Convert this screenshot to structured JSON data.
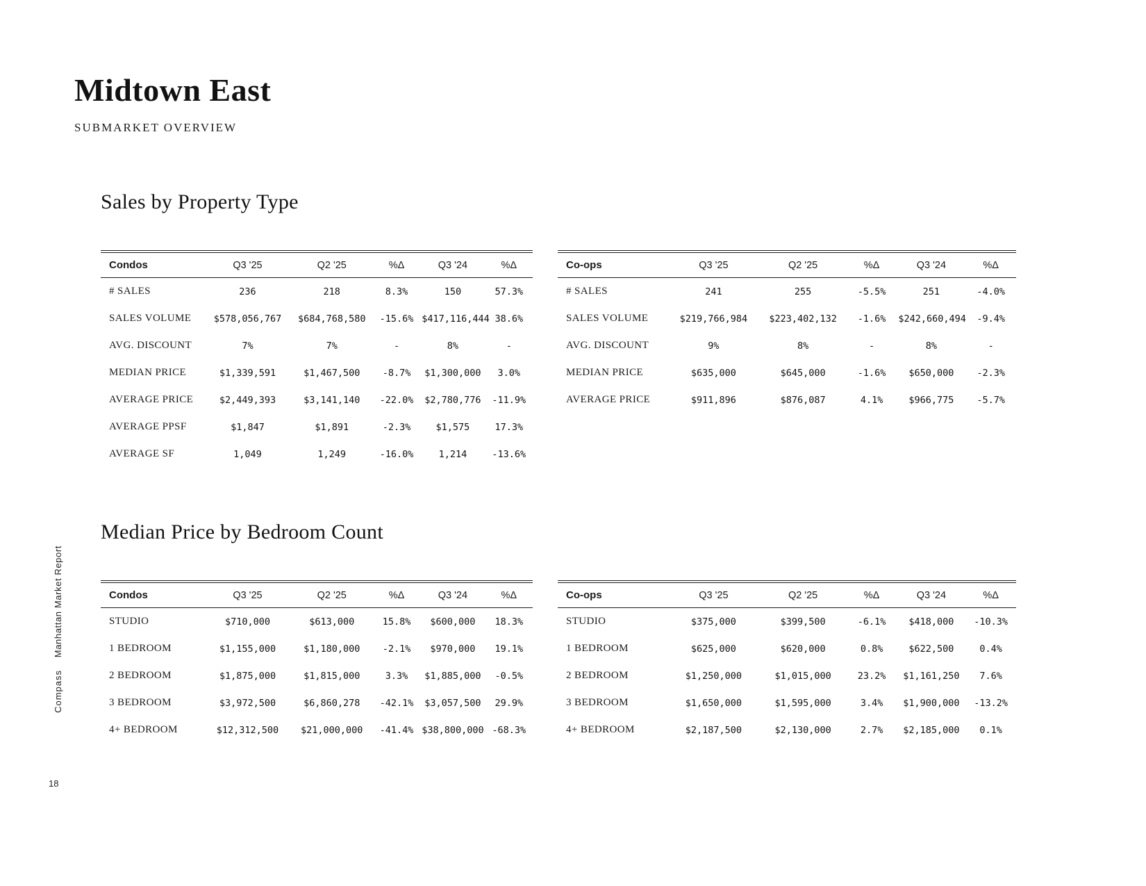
{
  "page": {
    "title": "Midtown East",
    "subtitle": "SUBMARKET OVERVIEW",
    "page_number": "18",
    "sidebar": {
      "report_name": "Manhattan Market Report",
      "brand": "Compass"
    }
  },
  "sections": [
    {
      "title": "Sales by Property Type",
      "tables": [
        {
          "name": "Condos",
          "columns": [
            "Q3 '25",
            "Q2 '25",
            "%Δ",
            "Q3 '24",
            "%Δ"
          ],
          "rows": [
            {
              "label": "# SALES",
              "values": [
                "236",
                "218",
                "8.3%",
                "150",
                "57.3%"
              ]
            },
            {
              "label": "SALES VOLUME",
              "values": [
                "$578,056,767",
                "$684,768,580",
                "-15.6%",
                "$417,116,444",
                "38.6%"
              ]
            },
            {
              "label": "AVG. DISCOUNT",
              "values": [
                "7%",
                "7%",
                "-",
                "8%",
                "-"
              ]
            },
            {
              "label": "MEDIAN PRICE",
              "values": [
                "$1,339,591",
                "$1,467,500",
                "-8.7%",
                "$1,300,000",
                "3.0%"
              ]
            },
            {
              "label": "AVERAGE PRICE",
              "values": [
                "$2,449,393",
                "$3,141,140",
                "-22.0%",
                "$2,780,776",
                "-11.9%"
              ]
            },
            {
              "label": "AVERAGE PPSF",
              "values": [
                "$1,847",
                "$1,891",
                "-2.3%",
                "$1,575",
                "17.3%"
              ]
            },
            {
              "label": "AVERAGE SF",
              "values": [
                "1,049",
                "1,249",
                "-16.0%",
                "1,214",
                "-13.6%"
              ]
            }
          ]
        },
        {
          "name": "Co-ops",
          "columns": [
            "Q3 '25",
            "Q2 '25",
            "%Δ",
            "Q3 '24",
            "%Δ"
          ],
          "rows": [
            {
              "label": "# SALES",
              "values": [
                "241",
                "255",
                "-5.5%",
                "251",
                "-4.0%"
              ]
            },
            {
              "label": "SALES VOLUME",
              "values": [
                "$219,766,984",
                "$223,402,132",
                "-1.6%",
                "$242,660,494",
                "-9.4%"
              ]
            },
            {
              "label": "AVG. DISCOUNT",
              "values": [
                "9%",
                "8%",
                "-",
                "8%",
                "-"
              ]
            },
            {
              "label": "MEDIAN PRICE",
              "values": [
                "$635,000",
                "$645,000",
                "-1.6%",
                "$650,000",
                "-2.3%"
              ]
            },
            {
              "label": "AVERAGE PRICE",
              "values": [
                "$911,896",
                "$876,087",
                "4.1%",
                "$966,775",
                "-5.7%"
              ]
            }
          ]
        }
      ]
    },
    {
      "title": "Median Price by Bedroom Count",
      "tables": [
        {
          "name": "Condos",
          "columns": [
            "Q3 '25",
            "Q2 '25",
            "%Δ",
            "Q3 '24",
            "%Δ"
          ],
          "rows": [
            {
              "label": "STUDIO",
              "values": [
                "$710,000",
                "$613,000",
                "15.8%",
                "$600,000",
                "18.3%"
              ]
            },
            {
              "label": "1 BEDROOM",
              "values": [
                "$1,155,000",
                "$1,180,000",
                "-2.1%",
                "$970,000",
                "19.1%"
              ]
            },
            {
              "label": "2 BEDROOM",
              "values": [
                "$1,875,000",
                "$1,815,000",
                "3.3%",
                "$1,885,000",
                "-0.5%"
              ]
            },
            {
              "label": "3 BEDROOM",
              "values": [
                "$3,972,500",
                "$6,860,278",
                "-42.1%",
                "$3,057,500",
                "29.9%"
              ]
            },
            {
              "label": "4+ BEDROOM",
              "values": [
                "$12,312,500",
                "$21,000,000",
                "-41.4%",
                "$38,800,000",
                "-68.3%"
              ]
            }
          ]
        },
        {
          "name": "Co-ops",
          "columns": [
            "Q3 '25",
            "Q2 '25",
            "%Δ",
            "Q3 '24",
            "%Δ"
          ],
          "rows": [
            {
              "label": "STUDIO",
              "values": [
                "$375,000",
                "$399,500",
                "-6.1%",
                "$418,000",
                "-10.3%"
              ]
            },
            {
              "label": "1 BEDROOM",
              "values": [
                "$625,000",
                "$620,000",
                "0.8%",
                "$622,500",
                "0.4%"
              ]
            },
            {
              "label": "2 BEDROOM",
              "values": [
                "$1,250,000",
                "$1,015,000",
                "23.2%",
                "$1,161,250",
                "7.6%"
              ]
            },
            {
              "label": "3 BEDROOM",
              "values": [
                "$1,650,000",
                "$1,595,000",
                "3.4%",
                "$1,900,000",
                "-13.2%"
              ]
            },
            {
              "label": "4+ BEDROOM",
              "values": [
                "$2,187,500",
                "$2,130,000",
                "2.7%",
                "$2,185,000",
                "0.1%"
              ]
            }
          ]
        }
      ]
    }
  ]
}
